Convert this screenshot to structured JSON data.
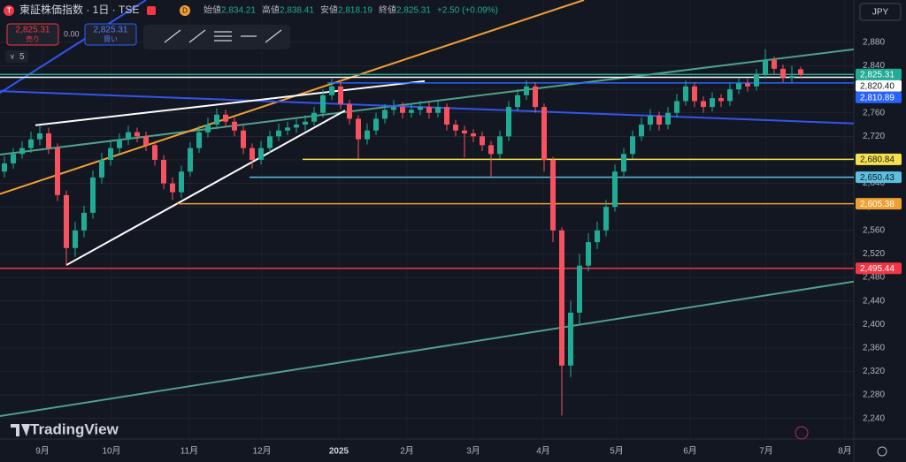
{
  "header": {
    "symbol": "東証株価指数 · 1日 · TSE",
    "exchange_badge": "D",
    "open_label": "始値",
    "open": "2,834.21",
    "high_label": "高値",
    "high": "2,838.41",
    "low_label": "安値",
    "low": "2,818.19",
    "close_label": "終値",
    "close": "2,825.31",
    "change": "+2.50 (+0.09%)",
    "sell_price": "2,825.31",
    "sell_label": "売り",
    "spread": "0.00",
    "buy_price": "2,825.31",
    "buy_label": "買い",
    "indicator_count": "5",
    "currency": "JPY",
    "brand": "TradingView"
  },
  "chart_data": {
    "type": "candlestick",
    "up_color": "#22ab94",
    "down_color": "#f7525f",
    "grid": true,
    "grid_color": "#2a2e39",
    "xlim": [
      -0.5,
      96
    ],
    "ylim": [
      2205,
      2952
    ],
    "xticks": [
      {
        "value": 4.3,
        "label": "9月"
      },
      {
        "value": 12.1,
        "label": "10月"
      },
      {
        "value": 20.9,
        "label": "11月"
      },
      {
        "value": 29.1,
        "label": "12月"
      },
      {
        "value": 37.8,
        "label": "2025"
      },
      {
        "value": 45.5,
        "label": "2月"
      },
      {
        "value": 53,
        "label": "3月"
      },
      {
        "value": 60.9,
        "label": "4月"
      },
      {
        "value": 69.2,
        "label": "5月"
      },
      {
        "value": 77.5,
        "label": "6月"
      },
      {
        "value": 86.1,
        "label": "7月"
      },
      {
        "value": 95,
        "label": "8月"
      }
    ],
    "yticks": [
      {
        "value": 2240,
        "label": "2,240"
      },
      {
        "value": 2280,
        "label": "2,280"
      },
      {
        "value": 2320,
        "label": "2,320"
      },
      {
        "value": 2360,
        "label": "2,360"
      },
      {
        "value": 2400,
        "label": "2,400"
      },
      {
        "value": 2440,
        "label": "2,440"
      },
      {
        "value": 2480,
        "label": "2,480"
      },
      {
        "value": 2520,
        "label": "2,520"
      },
      {
        "value": 2560,
        "label": "2,560"
      },
      {
        "value": 2600,
        "label": "2,600"
      },
      {
        "value": 2640,
        "label": "2,640"
      },
      {
        "value": 2680,
        "label": "2,680"
      },
      {
        "value": 2720,
        "label": "2,720"
      },
      {
        "value": 2760,
        "label": "2,760"
      },
      {
        "value": 2800,
        "label": "2,800"
      },
      {
        "value": 2840,
        "label": "2,840"
      },
      {
        "value": 2880,
        "label": "2,880"
      }
    ],
    "open": [
      2660,
      2674,
      2690,
      2700,
      2715,
      2725,
      2700,
      2620,
      2530,
      2560,
      2590,
      2650,
      2680,
      2700,
      2715,
      2727,
      2720,
      2705,
      2680,
      2640,
      2625,
      2660,
      2700,
      2727,
      2740,
      2757,
      2745,
      2730,
      2700,
      2680,
      2700,
      2720,
      2730,
      2735,
      2740,
      2745,
      2760,
      2790,
      2805,
      2775,
      2750,
      2715,
      2730,
      2750,
      2765,
      2770,
      2760,
      2765,
      2770,
      2760,
      2770,
      2740,
      2730,
      2725,
      2720,
      2705,
      2690,
      2720,
      2770,
      2790,
      2805,
      2770,
      2680,
      2560,
      2330,
      2420,
      2500,
      2540,
      2560,
      2600,
      2660,
      2690,
      2720,
      2740,
      2755,
      2740,
      2760,
      2780,
      2805,
      2780,
      2770,
      2785,
      2780,
      2800,
      2810,
      2805,
      2825,
      2850,
      2835,
      2820,
      2834.21
    ],
    "high": [
      2686,
      2700,
      2712,
      2728,
      2738,
      2735,
      2708,
      2628,
      2575,
      2602,
      2662,
      2692,
      2712,
      2725,
      2738,
      2735,
      2728,
      2712,
      2688,
      2650,
      2670,
      2710,
      2738,
      2752,
      2768,
      2765,
      2752,
      2738,
      2708,
      2712,
      2730,
      2742,
      2745,
      2752,
      2756,
      2770,
      2800,
      2818,
      2812,
      2782,
      2756,
      2742,
      2760,
      2775,
      2782,
      2778,
      2775,
      2780,
      2778,
      2780,
      2776,
      2748,
      2738,
      2732,
      2728,
      2712,
      2730,
      2780,
      2800,
      2815,
      2812,
      2776,
      2685,
      2565,
      2440,
      2520,
      2555,
      2575,
      2612,
      2672,
      2700,
      2730,
      2752,
      2766,
      2762,
      2770,
      2792,
      2815,
      2812,
      2788,
      2795,
      2792,
      2810,
      2820,
      2818,
      2835,
      2868,
      2856,
      2842,
      2840,
      2838.41
    ],
    "low": [
      2650,
      2665,
      2682,
      2692,
      2705,
      2690,
      2610,
      2500,
      2515,
      2548,
      2580,
      2640,
      2670,
      2690,
      2705,
      2710,
      2695,
      2670,
      2630,
      2612,
      2615,
      2652,
      2692,
      2718,
      2732,
      2735,
      2720,
      2690,
      2665,
      2672,
      2692,
      2712,
      2722,
      2726,
      2730,
      2738,
      2752,
      2782,
      2766,
      2740,
      2682,
      2706,
      2722,
      2742,
      2756,
      2750,
      2752,
      2756,
      2750,
      2752,
      2730,
      2720,
      2684,
      2710,
      2695,
      2650,
      2682,
      2712,
      2762,
      2782,
      2760,
      2660,
      2540,
      2245,
      2310,
      2400,
      2490,
      2528,
      2550,
      2592,
      2652,
      2682,
      2712,
      2730,
      2730,
      2732,
      2752,
      2772,
      2770,
      2760,
      2762,
      2770,
      2772,
      2792,
      2796,
      2798,
      2818,
      2826,
      2812,
      2812,
      2818.19
    ],
    "close": [
      2674,
      2690,
      2700,
      2715,
      2725,
      2700,
      2620,
      2530,
      2560,
      2590,
      2650,
      2680,
      2700,
      2715,
      2727,
      2720,
      2705,
      2680,
      2640,
      2625,
      2660,
      2700,
      2727,
      2740,
      2757,
      2745,
      2730,
      2700,
      2680,
      2700,
      2720,
      2730,
      2735,
      2740,
      2745,
      2760,
      2790,
      2805,
      2775,
      2750,
      2715,
      2730,
      2750,
      2765,
      2770,
      2760,
      2765,
      2770,
      2760,
      2770,
      2740,
      2730,
      2725,
      2720,
      2705,
      2690,
      2720,
      2770,
      2790,
      2805,
      2770,
      2680,
      2560,
      2330,
      2420,
      2500,
      2540,
      2560,
      2600,
      2660,
      2690,
      2720,
      2740,
      2755,
      2740,
      2760,
      2780,
      2805,
      2780,
      2770,
      2785,
      2780,
      2800,
      2810,
      2805,
      2825,
      2850,
      2835,
      2820,
      2822.81,
      2825.31
    ],
    "drawings": [
      {
        "x1": -0.5,
        "y1": 2244,
        "x2": 96,
        "y2": 2473,
        "color": "#4fa08b"
      },
      {
        "x1": -0.5,
        "y1": 2689,
        "x2": 96,
        "y2": 2868,
        "color": "#4fa08b"
      },
      {
        "x1": -0.5,
        "y1": 2622,
        "x2": 65.5,
        "y2": 2952,
        "color": "#f0a030"
      },
      {
        "x1": -0.5,
        "y1": 2794,
        "x2": 16,
        "y2": 2952,
        "color": "#3355ee"
      },
      {
        "x1": -0.5,
        "y1": 2797,
        "x2": 96,
        "y2": 2742,
        "color": "#3355ee"
      },
      {
        "x1": 3.5,
        "y1": 2739,
        "x2": 47.5,
        "y2": 2814,
        "color": "#ffffff"
      },
      {
        "x1": 7,
        "y1": 2501,
        "x2": 38.5,
        "y2": 2764,
        "color": "#ffffff"
      }
    ],
    "levels": [
      {
        "value": 2825.31,
        "label": "2,825.31",
        "color": "#22ab94",
        "from": -0.5
      },
      {
        "value": 2820.4,
        "label": "2,820.40",
        "color": "#ffffff",
        "from": -0.5
      },
      {
        "value": 2810.89,
        "label": "2,810.89",
        "color": "#2962ff",
        "from": 36.5
      },
      {
        "value": 2680.84,
        "label": "2,680.84",
        "color": "#f5e14b",
        "from": 33.7
      },
      {
        "value": 2650.43,
        "label": "2,650.43",
        "color": "#5bc0de",
        "from": 27.7
      },
      {
        "value": 2605.38,
        "label": "2,605.38",
        "color": "#f0a030",
        "from": 19.5
      },
      {
        "value": 2495.44,
        "label": "2,495.44",
        "color": "#f23645",
        "from": -0.5
      }
    ]
  }
}
